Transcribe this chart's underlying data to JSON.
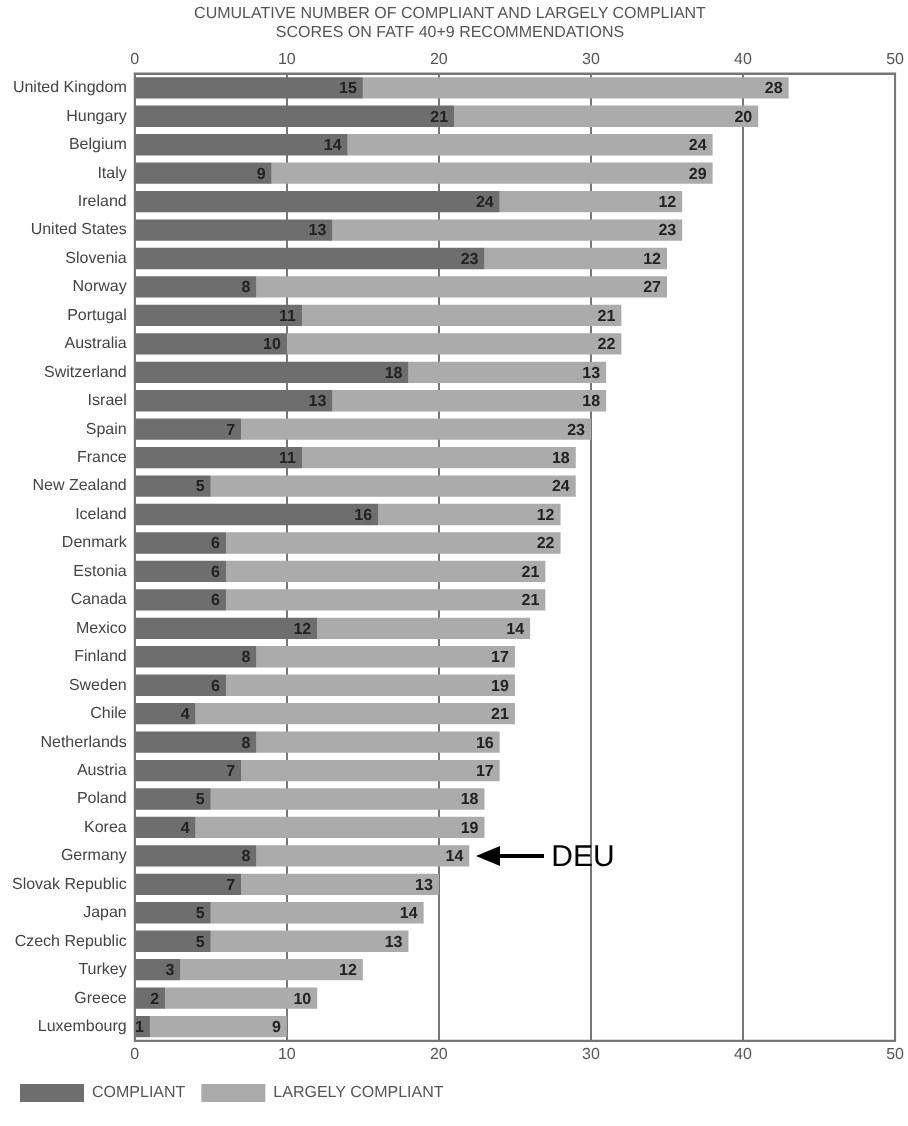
{
  "chart_data": {
    "type": "bar",
    "orientation": "horizontal",
    "stacked": true,
    "title": "CUMULATIVE NUMBER OF COMPLIANT AND LARGELY COMPLIANT SCORES ON FATF 40+9 RECOMMENDATIONS",
    "categories": [
      "United Kingdom",
      "Hungary",
      "Belgium",
      "Italy",
      "Ireland",
      "United States",
      "Slovenia",
      "Norway",
      "Portugal",
      "Australia",
      "Switzerland",
      "Israel",
      "Spain",
      "France",
      "New Zealand",
      "Iceland",
      "Denmark",
      "Estonia",
      "Canada",
      "Mexico",
      "Finland",
      "Sweden",
      "Chile",
      "Netherlands",
      "Austria",
      "Poland",
      "Korea",
      "Germany",
      "Slovak Republic",
      "Japan",
      "Czech Republic",
      "Turkey",
      "Greece",
      "Luxembourg"
    ],
    "series": [
      {
        "name": "COMPLIANT",
        "color": "#6e6e6e",
        "values": [
          15,
          21,
          14,
          9,
          24,
          13,
          23,
          8,
          11,
          10,
          18,
          13,
          7,
          11,
          5,
          16,
          6,
          6,
          6,
          12,
          8,
          6,
          4,
          8,
          7,
          5,
          4,
          8,
          7,
          5,
          5,
          3,
          2,
          1
        ]
      },
      {
        "name": "LARGELY COMPLIANT",
        "color": "#ababab",
        "values": [
          28,
          20,
          24,
          29,
          12,
          23,
          12,
          27,
          21,
          22,
          13,
          18,
          23,
          18,
          24,
          12,
          22,
          21,
          21,
          14,
          17,
          19,
          21,
          16,
          17,
          18,
          19,
          14,
          13,
          14,
          13,
          12,
          10,
          9
        ]
      }
    ],
    "xlim": [
      0,
      50
    ],
    "xticks": [
      0,
      10,
      20,
      30,
      40,
      50
    ],
    "x2lim": [
      0,
      50
    ],
    "x2ticks": [
      0,
      10,
      20,
      30,
      40,
      50
    ],
    "grid": "x",
    "legend": "bottom",
    "data_labels": true,
    "annotations": [
      {
        "text": "DEU",
        "x": 22,
        "y": "Germany"
      }
    ]
  }
}
